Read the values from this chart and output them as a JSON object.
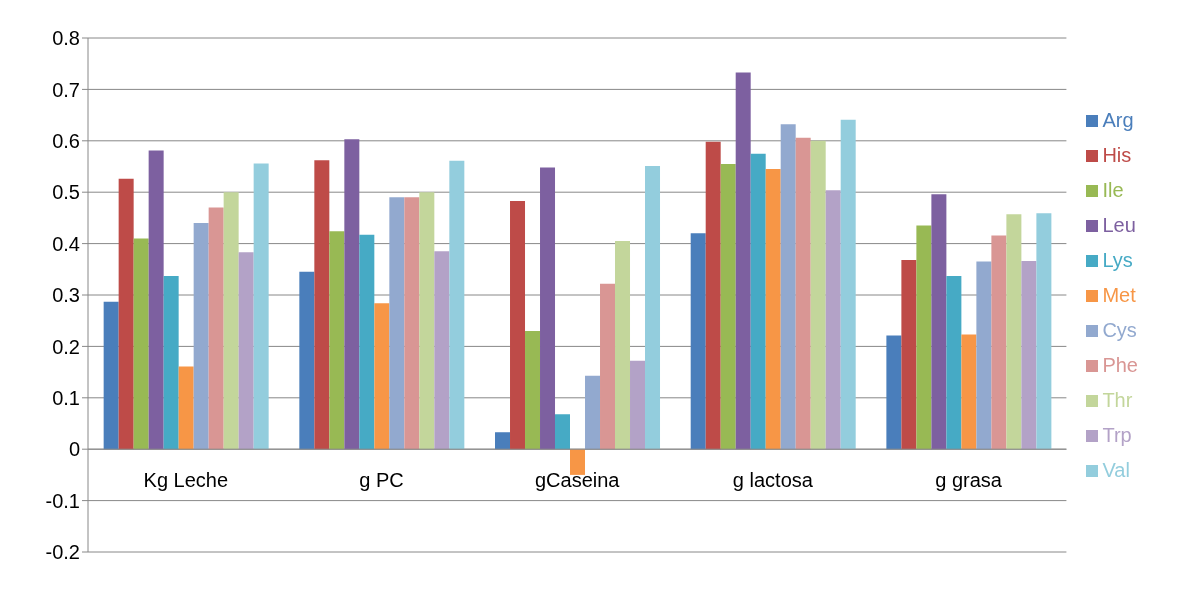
{
  "chart_data": {
    "type": "bar",
    "categories": [
      "Kg Leche",
      "g PC",
      "gCaseina",
      "g lactosa",
      "g grasa"
    ],
    "series": [
      {
        "name": "Arg",
        "color": "#4a7ebb",
        "values": [
          0.287,
          0.345,
          0.033,
          0.42,
          0.221
        ]
      },
      {
        "name": "His",
        "color": "#be4b48",
        "values": [
          0.526,
          0.562,
          0.483,
          0.598,
          0.368
        ]
      },
      {
        "name": "Ile",
        "color": "#98b954",
        "values": [
          0.41,
          0.424,
          0.23,
          0.555,
          0.435
        ]
      },
      {
        "name": "Leu",
        "color": "#7d60a0",
        "values": [
          0.581,
          0.603,
          0.548,
          0.733,
          0.496
        ]
      },
      {
        "name": "Lys",
        "color": "#46aac5",
        "values": [
          0.337,
          0.417,
          0.068,
          0.575,
          0.337
        ]
      },
      {
        "name": "Met",
        "color": "#f79646",
        "values": [
          0.161,
          0.284,
          -0.05,
          0.545,
          0.223
        ]
      },
      {
        "name": "Cys",
        "color": "#92a9cf",
        "values": [
          0.44,
          0.49,
          0.143,
          0.632,
          0.365
        ]
      },
      {
        "name": "Phe",
        "color": "#d99694",
        "values": [
          0.47,
          0.49,
          0.322,
          0.606,
          0.416
        ]
      },
      {
        "name": "Thr",
        "color": "#c3d69b",
        "values": [
          0.5,
          0.5,
          0.405,
          0.6,
          0.457
        ]
      },
      {
        "name": "Trp",
        "color": "#b3a2c7",
        "values": [
          0.383,
          0.385,
          0.172,
          0.504,
          0.366
        ]
      },
      {
        "name": "Val",
        "color": "#93cddd",
        "values": [
          0.556,
          0.561,
          0.551,
          0.641,
          0.459
        ]
      }
    ],
    "ylim": [
      -0.2,
      0.8
    ],
    "yticks": [
      -0.2,
      -0.1,
      0,
      0.1,
      0.2,
      0.3,
      0.4,
      0.5,
      0.6,
      0.7,
      0.8
    ],
    "grid": "y",
    "legend": "right"
  }
}
